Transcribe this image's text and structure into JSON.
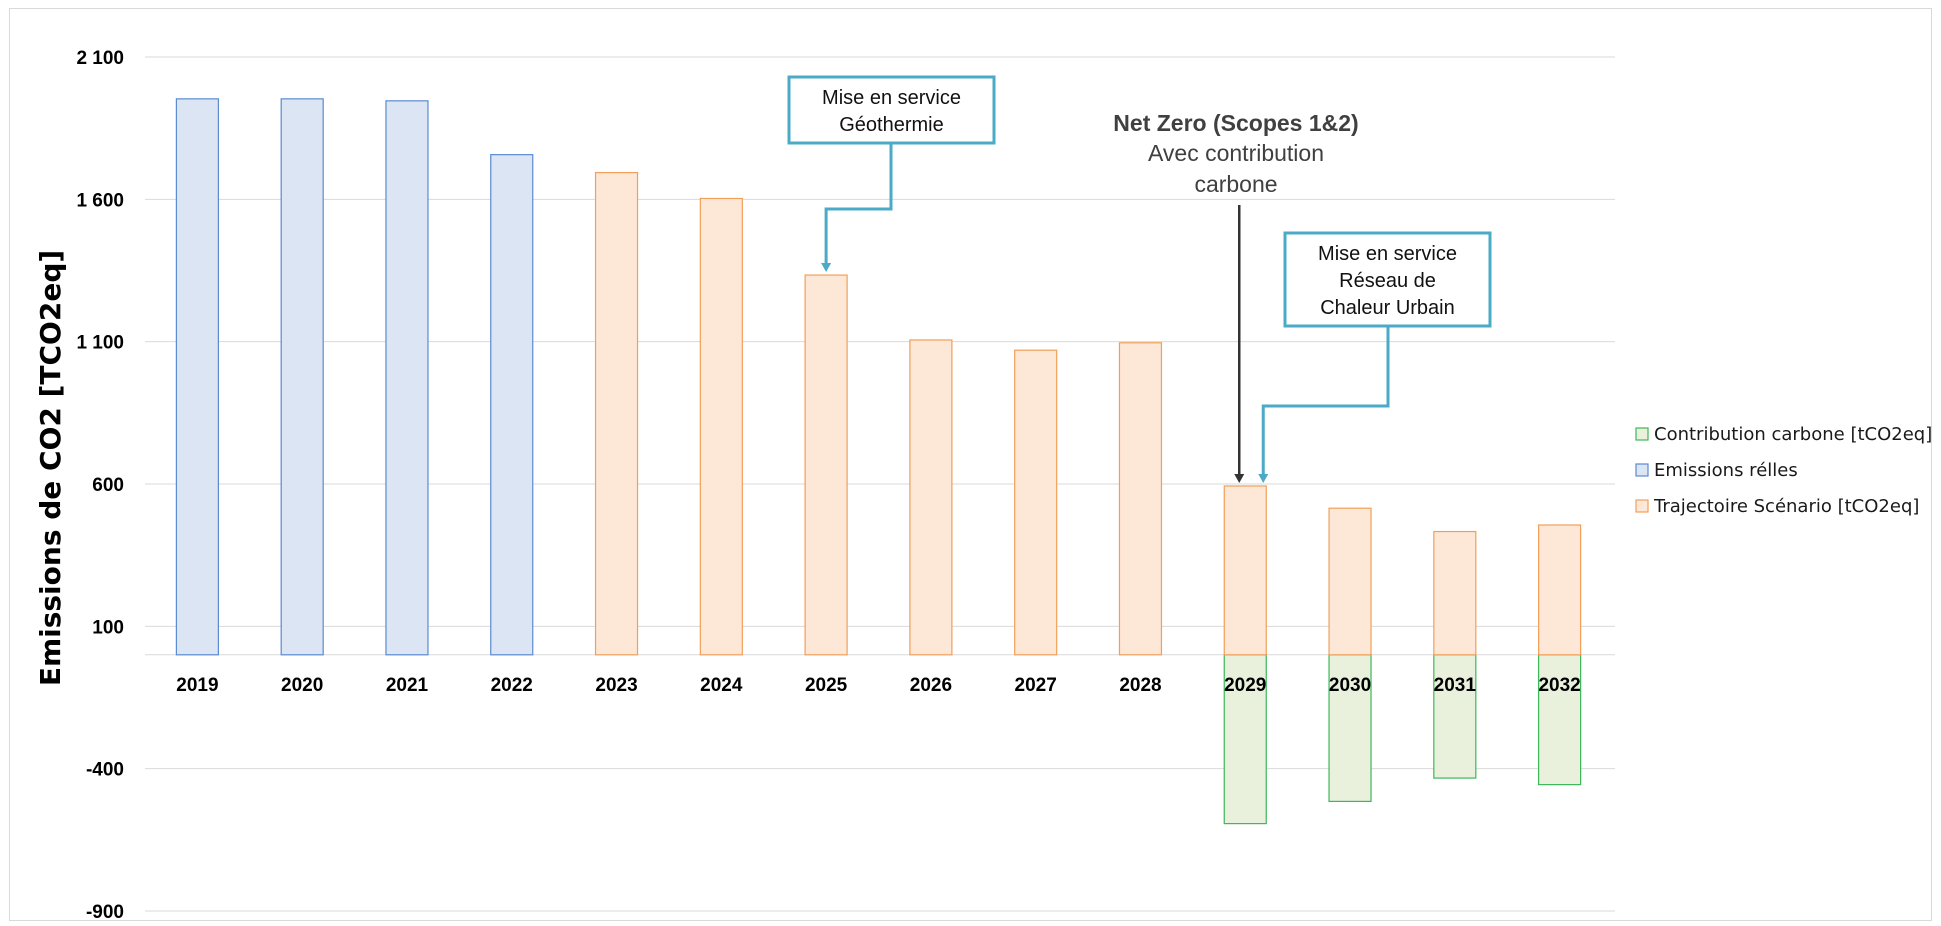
{
  "chart_data": {
    "type": "bar",
    "title": "",
    "xlabel": "",
    "ylabel": "Emissions de CO2 [TCO2eq]",
    "ylim": [
      -900,
      2100
    ],
    "yticks": [
      -900,
      -400,
      100,
      600,
      1100,
      1600,
      2100
    ],
    "ytick_labels": [
      "-900",
      "-400",
      "100",
      "600",
      "1 100",
      "1 600",
      "2 100"
    ],
    "categories": [
      "2019",
      "2020",
      "2021",
      "2022",
      "2023",
      "2024",
      "2025",
      "2026",
      "2027",
      "2028",
      "2029",
      "2030",
      "2031",
      "2032"
    ],
    "grid": true,
    "legend_position": "right",
    "series": [
      {
        "name": "Contribution carbone [tCO2eq]",
        "color_fill": "#e9f1dd",
        "color_edge": "#3cb85a",
        "values": [
          0,
          0,
          0,
          0,
          0,
          0,
          0,
          0,
          0,
          0,
          -593,
          -515,
          -433,
          -456
        ]
      },
      {
        "name": "Emissions rélles",
        "color_fill": "#dbe5f3",
        "color_edge": "#5b8bd0",
        "values": [
          1953,
          1953,
          1946,
          1757,
          0,
          0,
          0,
          0,
          0,
          0,
          0,
          0,
          0,
          0
        ]
      },
      {
        "name": "Trajectoire Scénario [tCO2eq]",
        "color_fill": "#fde7d6",
        "color_edge": "#f0a05a",
        "values": [
          0,
          0,
          0,
          0,
          1694,
          1603,
          1334,
          1106,
          1070,
          1096,
          593,
          515,
          433,
          456
        ]
      }
    ],
    "annotations": [
      {
        "lines": [
          "Mise en service",
          "Géothermie"
        ],
        "target_category": "2025",
        "target_value": 1334,
        "color": "#4baac6"
      },
      {
        "lines": [
          "Mise en service",
          "Réseau de",
          "Chaleur Urbain"
        ],
        "target_category": "2029",
        "target_value": 593,
        "color": "#4baac6"
      },
      {
        "title": "Net Zero (Scopes 1&2)",
        "lines": [
          "Avec contribution",
          "carbone"
        ],
        "target_category": "2029",
        "target_value": 593,
        "color": "#333333"
      }
    ]
  }
}
